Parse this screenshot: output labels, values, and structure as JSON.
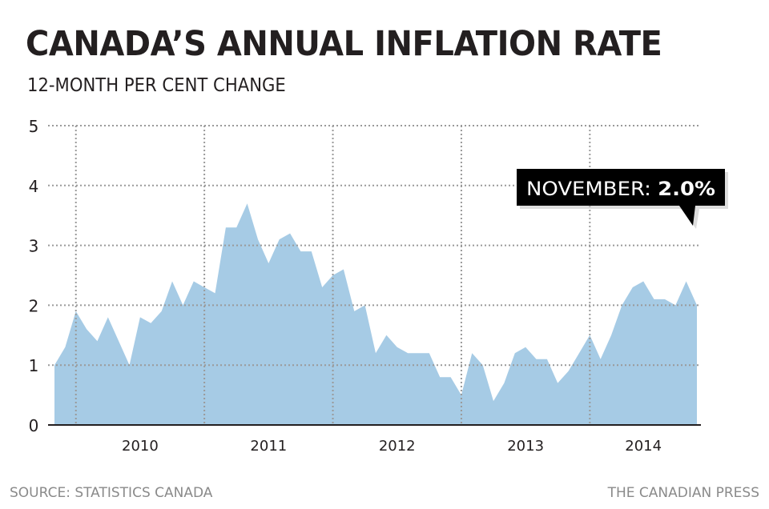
{
  "header": {
    "title": "CANADA’S ANNUAL INFLATION RATE",
    "subtitle": "12-MONTH PER CENT CHANGE"
  },
  "footer": {
    "source": "SOURCE: STATISTICS CANADA",
    "credit": "THE CANADIAN PRESS"
  },
  "colors": {
    "fill": "#a6cbe5",
    "text": "#231f20",
    "grid": "#9a9a9a",
    "callout_bg": "#000000"
  },
  "chart_data": {
    "type": "area",
    "title": "CANADA’S ANNUAL INFLATION RATE",
    "subtitle": "12-MONTH PER CENT CHANGE",
    "ylim": [
      0,
      5
    ],
    "yticks": [
      "0",
      "1",
      "2",
      "3",
      "4",
      "5"
    ],
    "xticks": [
      "2010",
      "2011",
      "2012",
      "2013",
      "2014"
    ],
    "grid": true,
    "start": "2009-11",
    "values": [
      1.0,
      1.3,
      1.9,
      1.6,
      1.4,
      1.8,
      1.4,
      1.0,
      1.8,
      1.7,
      1.9,
      2.4,
      2.0,
      2.4,
      2.3,
      2.2,
      3.3,
      3.3,
      3.7,
      3.1,
      2.7,
      3.1,
      3.2,
      2.9,
      2.9,
      2.3,
      2.5,
      2.6,
      1.9,
      2.0,
      1.2,
      1.5,
      1.3,
      1.2,
      1.2,
      1.2,
      0.8,
      0.8,
      0.5,
      1.2,
      1.0,
      0.4,
      0.7,
      1.2,
      1.3,
      1.1,
      1.1,
      0.7,
      0.9,
      1.2,
      1.5,
      1.1,
      1.5,
      2.0,
      2.3,
      2.4,
      2.1,
      2.1,
      2.0,
      2.4,
      2.0
    ],
    "annotation": {
      "label": "NOVEMBER: ",
      "value": "2.0%"
    }
  }
}
